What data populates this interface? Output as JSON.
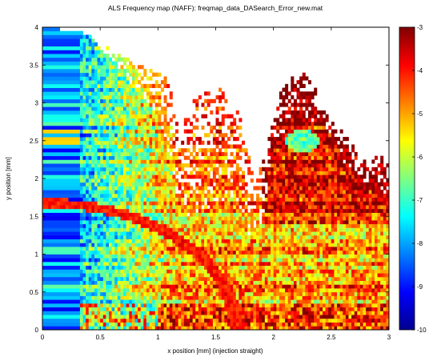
{
  "chart_data": {
    "type": "heatmap",
    "title": "ALS Frequency map (NAFF): freqmap_data_DASearch_Error_new.mat",
    "xlabel": "x position [mm] (injection straight)",
    "ylabel": "y position [mm]",
    "xlim": [
      0,
      3
    ],
    "ylim": [
      0,
      4
    ],
    "xticks": [
      0,
      0.5,
      1,
      1.5,
      2,
      2.5,
      3
    ],
    "xtick_labels": [
      "0",
      "0.5",
      "1",
      "1.5",
      "2",
      "2.5",
      "3"
    ],
    "yticks": [
      0,
      0.5,
      1,
      1.5,
      2,
      2.5,
      3,
      3.5,
      4
    ],
    "ytick_labels": [
      "0",
      "0.5",
      "1",
      "1.5",
      "2",
      "2.5",
      "3",
      "3.5",
      "4"
    ],
    "colorbar": {
      "range": [
        -10,
        -3
      ],
      "ticks": [
        -3,
        -4,
        -5,
        -6,
        -7,
        -8,
        -9,
        -10
      ],
      "tick_labels": [
        "-3",
        "-4",
        "-5",
        "-6",
        "-7",
        "-8",
        "-9",
        "-10"
      ],
      "colormap": "jet"
    },
    "grid": {
      "x_step": 0.025,
      "y_step": 0.05,
      "nx": 120,
      "ny": 80
    },
    "boundary": [
      [
        0.0,
        4.0
      ],
      [
        0.3,
        3.95
      ],
      [
        0.45,
        3.85
      ],
      [
        0.6,
        3.7
      ],
      [
        0.8,
        3.55
      ],
      [
        1.0,
        3.4
      ],
      [
        1.1,
        3.3
      ],
      [
        1.2,
        2.6
      ],
      [
        1.3,
        3.1
      ],
      [
        1.55,
        3.2
      ],
      [
        1.7,
        2.9
      ],
      [
        1.85,
        1.9
      ],
      [
        1.95,
        2.6
      ],
      [
        2.1,
        3.3
      ],
      [
        2.25,
        3.45
      ],
      [
        2.4,
        3.1
      ],
      [
        2.6,
        2.6
      ],
      [
        2.8,
        2.3
      ],
      [
        2.95,
        2.3
      ],
      [
        3.0,
        2.2
      ]
    ],
    "dense_core": [
      [
        0.0,
        4.0
      ],
      [
        0.4,
        3.9
      ],
      [
        0.6,
        3.5
      ],
      [
        0.8,
        3.2
      ],
      [
        1.0,
        2.8
      ],
      [
        1.1,
        2.2
      ],
      [
        1.2,
        1.6
      ],
      [
        1.3,
        1.4
      ],
      [
        1.5,
        1.7
      ],
      [
        1.65,
        1.6
      ],
      [
        1.8,
        1.2
      ],
      [
        1.9,
        1.4
      ],
      [
        2.0,
        2.4
      ],
      [
        2.2,
        2.9
      ],
      [
        2.4,
        2.7
      ],
      [
        2.6,
        2.2
      ],
      [
        2.8,
        1.9
      ],
      [
        3.0,
        1.8
      ]
    ],
    "features": {
      "ring": {
        "center": [
          0.0,
          0.0
        ],
        "radius": 1.68,
        "value": -3.6
      },
      "low_band": {
        "x_range": [
          1.0,
          3.0
        ],
        "y_range": [
          0.0,
          0.35
        ],
        "value": -4.2
      },
      "blue_column": {
        "x_range": [
          0.0,
          0.32
        ],
        "value": -8.9
      },
      "hot_region": {
        "x_range": [
          1.95,
          3.0
        ],
        "y_range": [
          1.4,
          3.4
        ],
        "value": -3.8
      },
      "cool_patch": {
        "center": [
          2.25,
          2.5
        ],
        "radius": 0.15,
        "value": -7.5
      }
    }
  }
}
